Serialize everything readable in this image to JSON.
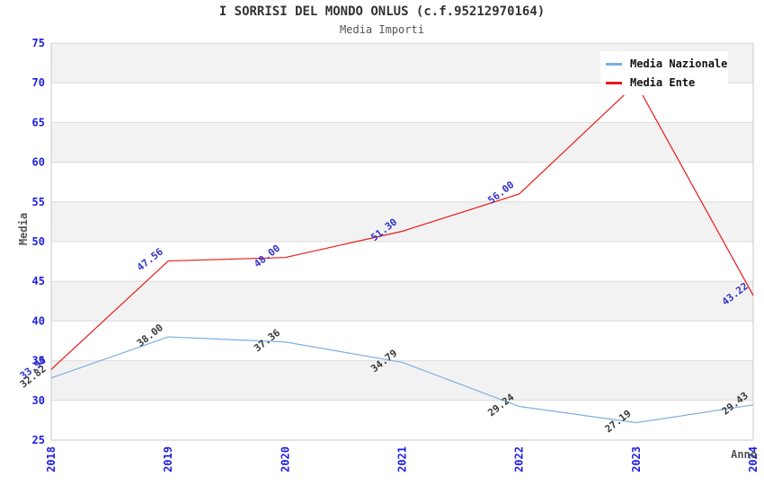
{
  "chart_data": {
    "type": "line",
    "title": "I SORRISI DEL MONDO ONLUS (c.f.95212970164)",
    "subtitle": "Media Importi",
    "xlabel": "Anno",
    "ylabel": "Media",
    "x": [
      "2018",
      "2019",
      "2020",
      "2021",
      "2022",
      "2023",
      "2024"
    ],
    "series": [
      {
        "name": "Media Nazionale",
        "color": "#7cb0e2",
        "label_color": "#3a3a3a",
        "values": [
          32.82,
          38.0,
          37.36,
          34.79,
          29.24,
          27.19,
          29.43
        ],
        "labels": [
          "32.82",
          "38.00",
          "37.36",
          "34.79",
          "29.24",
          "27.19",
          "29.43"
        ]
      },
      {
        "name": "Media Ente",
        "color": "#e81919",
        "label_color": "#3232c8",
        "values": [
          33.9,
          47.56,
          48.0,
          51.3,
          56.0,
          69.9,
          43.22
        ],
        "labels": [
          "33.90",
          "47.56",
          "48.00",
          "51.30",
          "56.00",
          "",
          "43.22"
        ]
      }
    ],
    "ylim": [
      25,
      75
    ],
    "ytick_step": 5,
    "grid": true,
    "band_fill": "#f2f2f2",
    "grid_color": "#dcdcdc",
    "border_color": "#c8c8c8",
    "tick_label_color": "#1d1de0",
    "legend_position": "top-right"
  }
}
